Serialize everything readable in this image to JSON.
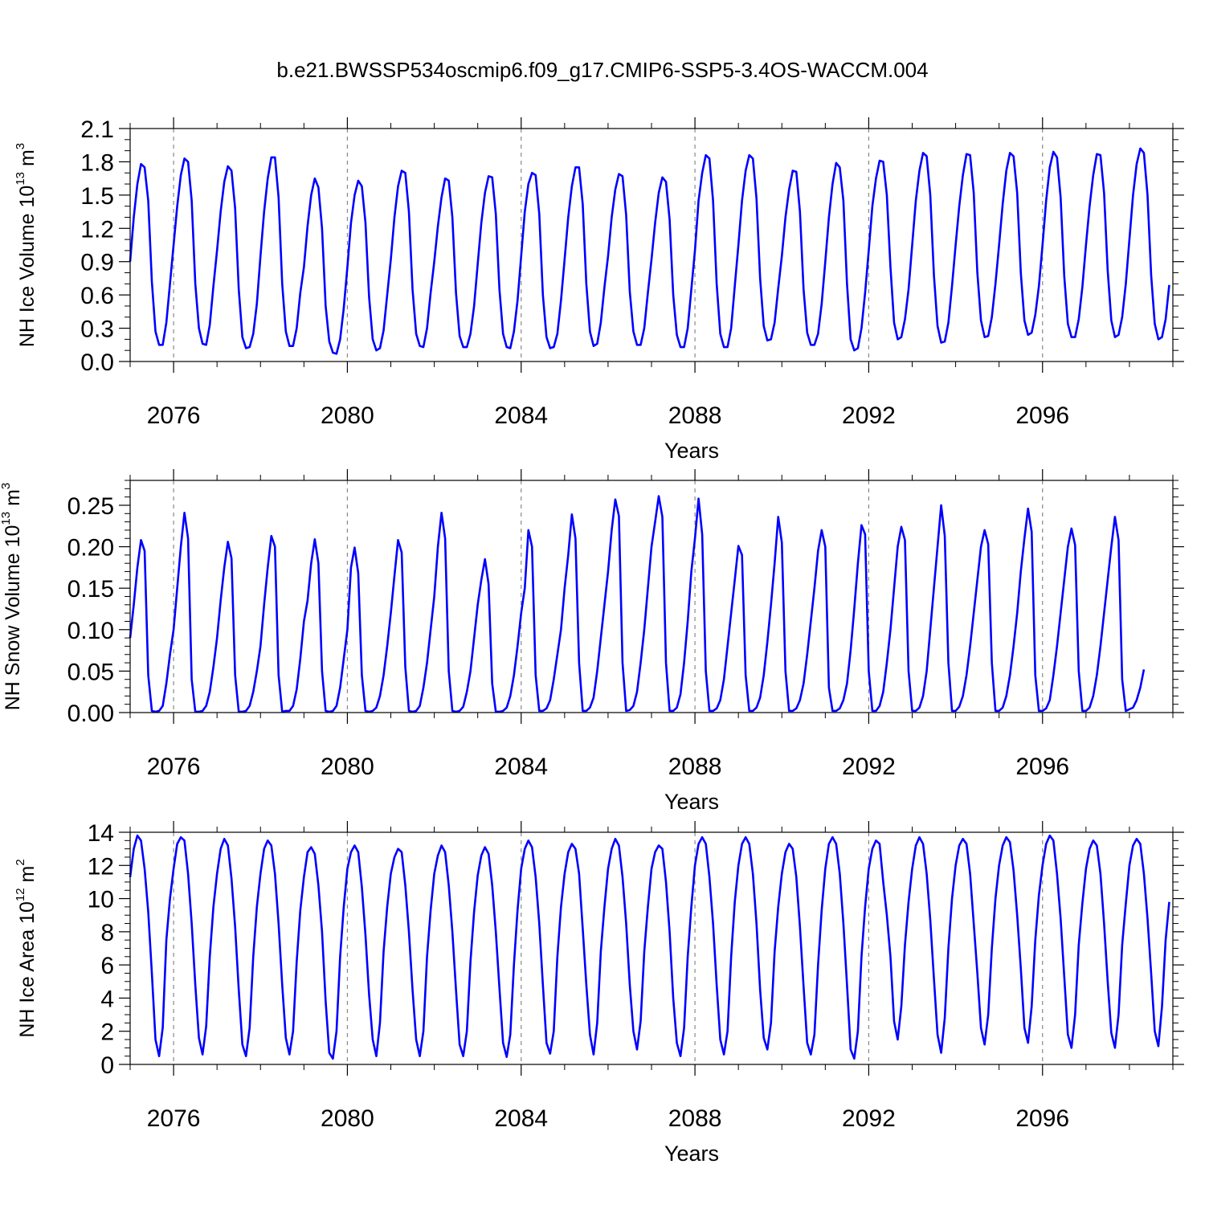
{
  "title": "b.e21.BWSSP534oscmip6.f09_g17.CMIP6-SSP5-3.4OS-WACCM.004",
  "colors": {
    "series": "#0000ff",
    "refline": "#888888",
    "axes": "#000000"
  },
  "chart_data": [
    {
      "type": "line",
      "title": "b.e21.BWSSP534oscmip6.f09_g17.CMIP6-SSP5-3.4OS-WACCM.004",
      "xlabel": "Years",
      "ylabel": {
        "main": "NH Ice Volume 10",
        "exp": "13",
        "unit": " m",
        "unit_exp": "3"
      },
      "xlim": [
        2075,
        2099
      ],
      "ylim": [
        0,
        2.1
      ],
      "yticks": [
        "0.0",
        "0.3",
        "0.6",
        "0.9",
        "1.2",
        "1.5",
        "1.8",
        "2.1"
      ],
      "ytick_values": [
        0,
        0.3,
        0.6,
        0.9,
        1.2,
        1.5,
        1.8,
        2.1
      ],
      "xticks": [
        "2076",
        "2080",
        "2084",
        "2088",
        "2092",
        "2096"
      ],
      "xtick_values": [
        2076,
        2080,
        2084,
        2088,
        2092,
        2096
      ],
      "reference_lines_x": [
        2076,
        2080,
        2084,
        2088,
        2092,
        2096
      ],
      "grid": false,
      "x_start": 2075.0,
      "x_step": 0.0833333,
      "series": [
        {
          "color": "#0000ff",
          "values": [
            0.9,
            1.3,
            1.6,
            1.78,
            1.75,
            1.45,
            0.72,
            0.27,
            0.15,
            0.15,
            0.35,
            0.7,
            1.05,
            1.4,
            1.68,
            1.83,
            1.8,
            1.45,
            0.7,
            0.3,
            0.16,
            0.15,
            0.33,
            0.68,
            1.0,
            1.35,
            1.62,
            1.76,
            1.72,
            1.38,
            0.65,
            0.22,
            0.12,
            0.13,
            0.25,
            0.52,
            0.95,
            1.35,
            1.65,
            1.84,
            1.84,
            1.48,
            0.7,
            0.27,
            0.14,
            0.14,
            0.3,
            0.62,
            0.85,
            1.22,
            1.5,
            1.65,
            1.57,
            1.2,
            0.5,
            0.18,
            0.08,
            0.07,
            0.2,
            0.48,
            0.85,
            1.25,
            1.5,
            1.63,
            1.58,
            1.25,
            0.58,
            0.2,
            0.1,
            0.12,
            0.28,
            0.6,
            0.92,
            1.3,
            1.58,
            1.72,
            1.7,
            1.35,
            0.65,
            0.25,
            0.14,
            0.13,
            0.3,
            0.62,
            0.9,
            1.22,
            1.48,
            1.65,
            1.63,
            1.3,
            0.62,
            0.23,
            0.13,
            0.13,
            0.25,
            0.5,
            0.88,
            1.25,
            1.52,
            1.67,
            1.66,
            1.33,
            0.65,
            0.25,
            0.13,
            0.12,
            0.27,
            0.55,
            0.95,
            1.35,
            1.6,
            1.7,
            1.68,
            1.33,
            0.6,
            0.22,
            0.12,
            0.13,
            0.25,
            0.55,
            0.92,
            1.3,
            1.58,
            1.75,
            1.75,
            1.42,
            0.7,
            0.27,
            0.14,
            0.16,
            0.35,
            0.67,
            0.95,
            1.3,
            1.55,
            1.69,
            1.67,
            1.32,
            0.63,
            0.27,
            0.15,
            0.15,
            0.3,
            0.62,
            0.92,
            1.25,
            1.52,
            1.66,
            1.62,
            1.28,
            0.6,
            0.24,
            0.13,
            0.13,
            0.3,
            0.65,
            1.0,
            1.45,
            1.7,
            1.86,
            1.83,
            1.45,
            0.7,
            0.25,
            0.13,
            0.13,
            0.3,
            0.68,
            1.05,
            1.45,
            1.72,
            1.86,
            1.83,
            1.47,
            0.75,
            0.32,
            0.19,
            0.2,
            0.35,
            0.66,
            0.95,
            1.3,
            1.55,
            1.72,
            1.71,
            1.35,
            0.65,
            0.26,
            0.15,
            0.15,
            0.25,
            0.52,
            0.9,
            1.3,
            1.6,
            1.79,
            1.75,
            1.45,
            0.7,
            0.2,
            0.1,
            0.12,
            0.3,
            0.62,
            1.0,
            1.4,
            1.65,
            1.81,
            1.8,
            1.5,
            0.85,
            0.35,
            0.2,
            0.22,
            0.38,
            0.65,
            1.05,
            1.45,
            1.72,
            1.88,
            1.85,
            1.5,
            0.78,
            0.32,
            0.17,
            0.18,
            0.35,
            0.68,
            1.05,
            1.4,
            1.68,
            1.87,
            1.86,
            1.52,
            0.8,
            0.37,
            0.22,
            0.23,
            0.4,
            0.7,
            1.05,
            1.42,
            1.72,
            1.88,
            1.85,
            1.52,
            0.8,
            0.37,
            0.24,
            0.26,
            0.42,
            0.68,
            1.05,
            1.45,
            1.75,
            1.89,
            1.84,
            1.48,
            0.77,
            0.34,
            0.22,
            0.22,
            0.38,
            0.67,
            1.05,
            1.4,
            1.68,
            1.87,
            1.86,
            1.52,
            0.82,
            0.37,
            0.22,
            0.24,
            0.4,
            0.7,
            1.1,
            1.5,
            1.78,
            1.92,
            1.88,
            1.5,
            0.78,
            0.34,
            0.2,
            0.22,
            0.38,
            0.69
          ]
        }
      ]
    },
    {
      "type": "line",
      "xlabel": "Years",
      "ylabel": {
        "main": "NH Snow Volume 10",
        "exp": "13",
        "unit": " m",
        "unit_exp": "3"
      },
      "xlim": [
        2075,
        2099
      ],
      "ylim": [
        0,
        0.28
      ],
      "yticks": [
        "0.00",
        "0.05",
        "0.10",
        "0.15",
        "0.20",
        "0.25"
      ],
      "ytick_values": [
        0,
        0.05,
        0.1,
        0.15,
        0.2,
        0.25
      ],
      "xticks": [
        "2076",
        "2080",
        "2084",
        "2088",
        "2092",
        "2096"
      ],
      "xtick_values": [
        2076,
        2080,
        2084,
        2088,
        2092,
        2096
      ],
      "reference_lines_x": [
        2076,
        2080,
        2084,
        2088,
        2092,
        2096
      ],
      "grid": false,
      "x_start": 2075.0,
      "x_step": 0.0833333,
      "series": [
        {
          "color": "#0000ff",
          "values": [
            0.09,
            0.13,
            0.175,
            0.208,
            0.195,
            0.045,
            0.002,
            0.001,
            0.002,
            0.008,
            0.035,
            0.07,
            0.1,
            0.15,
            0.2,
            0.241,
            0.21,
            0.04,
            0.001,
            0.001,
            0.002,
            0.008,
            0.025,
            0.055,
            0.09,
            0.135,
            0.175,
            0.206,
            0.186,
            0.045,
            0.001,
            0.001,
            0.002,
            0.008,
            0.025,
            0.05,
            0.08,
            0.13,
            0.175,
            0.213,
            0.2,
            0.045,
            0.001,
            0.002,
            0.002,
            0.008,
            0.028,
            0.065,
            0.11,
            0.135,
            0.18,
            0.209,
            0.18,
            0.05,
            0.002,
            0.001,
            0.002,
            0.008,
            0.03,
            0.065,
            0.1,
            0.175,
            0.199,
            0.168,
            0.045,
            0.002,
            0.001,
            0.002,
            0.006,
            0.02,
            0.045,
            0.08,
            0.12,
            0.165,
            0.208,
            0.193,
            0.055,
            0.002,
            0.001,
            0.002,
            0.008,
            0.03,
            0.06,
            0.1,
            0.14,
            0.2,
            0.241,
            0.21,
            0.05,
            0.002,
            0.001,
            0.002,
            0.007,
            0.025,
            0.05,
            0.09,
            0.13,
            0.16,
            0.185,
            0.155,
            0.035,
            0.001,
            0.001,
            0.002,
            0.006,
            0.02,
            0.045,
            0.08,
            0.12,
            0.15,
            0.22,
            0.2,
            0.045,
            0.002,
            0.002,
            0.005,
            0.015,
            0.04,
            0.07,
            0.1,
            0.15,
            0.19,
            0.239,
            0.21,
            0.06,
            0.002,
            0.002,
            0.006,
            0.018,
            0.05,
            0.09,
            0.13,
            0.17,
            0.22,
            0.257,
            0.237,
            0.06,
            0.002,
            0.003,
            0.008,
            0.025,
            0.06,
            0.1,
            0.15,
            0.2,
            0.23,
            0.261,
            0.236,
            0.06,
            0.002,
            0.002,
            0.006,
            0.022,
            0.06,
            0.11,
            0.17,
            0.21,
            0.258,
            0.215,
            0.05,
            0.002,
            0.002,
            0.005,
            0.015,
            0.04,
            0.08,
            0.12,
            0.16,
            0.201,
            0.19,
            0.045,
            0.002,
            0.002,
            0.006,
            0.018,
            0.045,
            0.085,
            0.13,
            0.18,
            0.236,
            0.205,
            0.05,
            0.002,
            0.002,
            0.005,
            0.015,
            0.035,
            0.07,
            0.11,
            0.15,
            0.195,
            0.22,
            0.2,
            0.03,
            0.002,
            0.002,
            0.005,
            0.015,
            0.035,
            0.075,
            0.125,
            0.18,
            0.226,
            0.215,
            0.05,
            0.002,
            0.002,
            0.008,
            0.025,
            0.06,
            0.1,
            0.15,
            0.2,
            0.224,
            0.208,
            0.05,
            0.002,
            0.002,
            0.006,
            0.02,
            0.05,
            0.1,
            0.15,
            0.2,
            0.25,
            0.213,
            0.06,
            0.002,
            0.002,
            0.007,
            0.02,
            0.045,
            0.08,
            0.12,
            0.16,
            0.2,
            0.22,
            0.203,
            0.06,
            0.002,
            0.002,
            0.006,
            0.02,
            0.045,
            0.08,
            0.12,
            0.17,
            0.21,
            0.246,
            0.218,
            0.045,
            0.002,
            0.002,
            0.005,
            0.015,
            0.045,
            0.08,
            0.12,
            0.16,
            0.2,
            0.222,
            0.202,
            0.05,
            0.002,
            0.002,
            0.006,
            0.02,
            0.045,
            0.08,
            0.12,
            0.16,
            0.2,
            0.236,
            0.208,
            0.04,
            0.002,
            0.004,
            0.006,
            0.015,
            0.03,
            0.052
          ]
        }
      ]
    },
    {
      "type": "line",
      "xlabel": "Years",
      "ylabel": {
        "main": "NH Ice Area 10",
        "exp": "12",
        "unit": " m",
        "unit_exp": "2"
      },
      "xlim": [
        2075,
        2099
      ],
      "ylim": [
        0,
        14
      ],
      "yticks": [
        "0",
        "2",
        "4",
        "6",
        "8",
        "10",
        "12",
        "14"
      ],
      "ytick_values": [
        0,
        2,
        4,
        6,
        8,
        10,
        12,
        14
      ],
      "xticks": [
        "2076",
        "2080",
        "2084",
        "2088",
        "2092",
        "2096"
      ],
      "xtick_values": [
        2076,
        2080,
        2084,
        2088,
        2092,
        2096
      ],
      "reference_lines_x": [
        2076,
        2080,
        2084,
        2088,
        2092,
        2096
      ],
      "grid": false,
      "x_start": 2075.0,
      "x_step": 0.0833333,
      "series": [
        {
          "color": "#0000ff",
          "values": [
            11.3,
            13.0,
            13.8,
            13.5,
            11.8,
            9.2,
            5.5,
            1.5,
            0.5,
            2.2,
            7.5,
            10.0,
            11.8,
            13.3,
            13.7,
            13.5,
            11.5,
            8.5,
            4.8,
            1.6,
            0.6,
            2.3,
            6.5,
            9.5,
            11.5,
            13.0,
            13.6,
            13.2,
            11.2,
            8.3,
            4.5,
            1.2,
            0.5,
            2.2,
            6.5,
            9.5,
            11.5,
            13.0,
            13.5,
            13.2,
            11.5,
            8.5,
            4.8,
            1.6,
            0.6,
            2.0,
            6.2,
            9.3,
            11.3,
            12.8,
            13.1,
            12.7,
            10.8,
            8.0,
            3.8,
            0.7,
            0.35,
            2.0,
            6.5,
            9.5,
            11.8,
            12.8,
            13.2,
            12.8,
            10.7,
            7.8,
            4.2,
            1.5,
            0.5,
            2.5,
            6.8,
            9.5,
            11.5,
            12.5,
            13.0,
            12.8,
            10.8,
            8.0,
            4.5,
            1.5,
            0.5,
            2.0,
            6.5,
            9.3,
            11.5,
            12.6,
            13.2,
            12.8,
            10.8,
            8.0,
            4.5,
            1.2,
            0.5,
            2.0,
            6.2,
            9.2,
            11.4,
            12.6,
            13.1,
            12.7,
            10.8,
            8.0,
            4.6,
            1.3,
            0.45,
            1.8,
            6.0,
            9.3,
            11.8,
            13.0,
            13.5,
            13.1,
            11.3,
            8.5,
            4.8,
            1.3,
            0.65,
            2.0,
            6.5,
            9.5,
            11.5,
            12.8,
            13.3,
            13.0,
            11.5,
            8.2,
            4.8,
            1.8,
            0.6,
            2.5,
            6.8,
            9.5,
            11.8,
            13.0,
            13.6,
            13.2,
            11.3,
            8.5,
            4.8,
            2.0,
            0.9,
            2.6,
            6.8,
            9.5,
            11.8,
            12.8,
            13.2,
            13.0,
            11.0,
            8.0,
            4.0,
            1.3,
            0.5,
            2.2,
            6.5,
            9.5,
            12.0,
            13.3,
            13.7,
            13.3,
            11.3,
            8.5,
            4.8,
            1.5,
            0.6,
            2.0,
            6.5,
            9.8,
            12.0,
            13.3,
            13.7,
            13.3,
            11.5,
            8.5,
            4.5,
            1.6,
            0.9,
            2.5,
            6.8,
            9.5,
            11.5,
            12.8,
            13.3,
            13.0,
            11.3,
            8.3,
            4.7,
            1.3,
            0.6,
            1.8,
            6.0,
            9.3,
            11.8,
            13.3,
            13.7,
            13.3,
            11.5,
            8.5,
            4.8,
            0.9,
            0.35,
            2.0,
            6.5,
            9.5,
            11.8,
            13.0,
            13.5,
            13.3,
            11.0,
            9.0,
            6.5,
            2.6,
            1.5,
            3.5,
            7.2,
            9.8,
            11.8,
            13.2,
            13.7,
            13.3,
            11.5,
            8.7,
            5.2,
            1.8,
            0.7,
            2.8,
            7.0,
            10.0,
            12.0,
            13.2,
            13.6,
            13.3,
            11.5,
            8.5,
            5.5,
            2.2,
            1.2,
            3.0,
            7.0,
            10.0,
            12.0,
            13.2,
            13.7,
            13.4,
            11.7,
            9.0,
            5.8,
            2.2,
            1.3,
            3.5,
            7.5,
            10.2,
            12.0,
            13.3,
            13.8,
            13.5,
            11.5,
            8.8,
            5.3,
            1.8,
            1.0,
            3.0,
            7.2,
            9.7,
            11.8,
            13.0,
            13.5,
            13.2,
            11.5,
            8.5,
            5.0,
            1.9,
            1.0,
            3.0,
            7.2,
            9.7,
            12.0,
            13.2,
            13.6,
            13.3,
            11.5,
            8.8,
            5.5,
            2.0,
            1.1,
            3.5,
            7.5,
            9.8
          ]
        }
      ]
    }
  ]
}
